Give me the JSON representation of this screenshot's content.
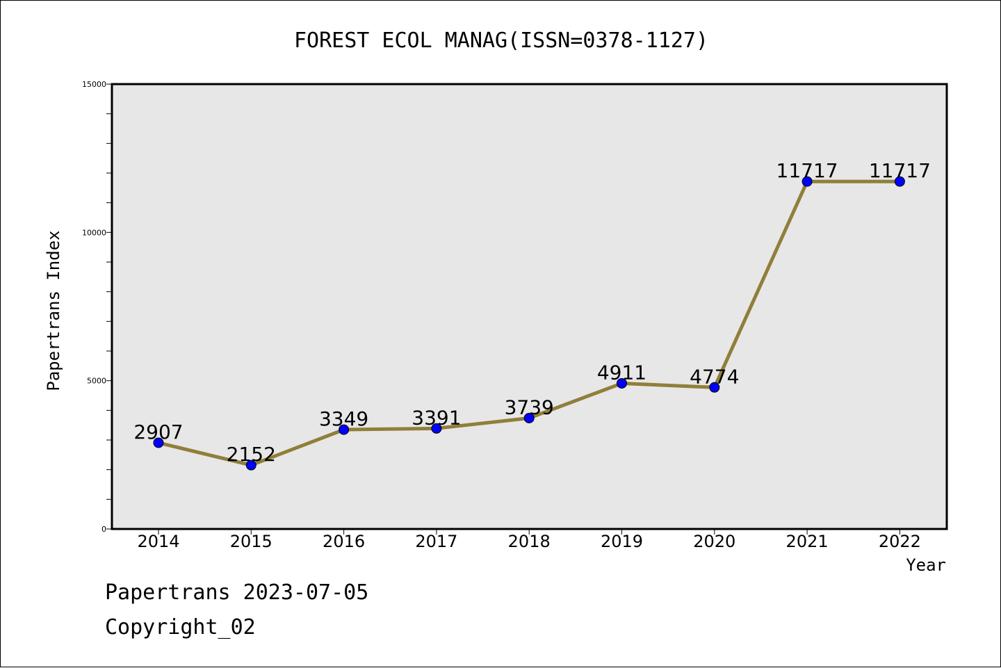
{
  "chart_data": {
    "type": "line",
    "title": "FOREST ECOL MANAG(ISSN=0378-1127)",
    "xlabel": "Year",
    "ylabel": "Papertrans Index",
    "categories": [
      "2014",
      "2015",
      "2016",
      "2017",
      "2018",
      "2019",
      "2020",
      "2021",
      "2022"
    ],
    "series": [
      {
        "values": [
          2907,
          2152,
          3349,
          3391,
          3739,
          4911,
          4774,
          11717,
          11717
        ],
        "data_labels": [
          "2907",
          "2152",
          "3349",
          "3391",
          "3739",
          "4911",
          "4774",
          "11717",
          "11717"
        ]
      }
    ],
    "ylim": [
      0,
      15000
    ],
    "y_major_ticks": [
      0,
      5000,
      10000,
      15000
    ],
    "y_tick_labels": [
      "0",
      "5000",
      "10000",
      "15000"
    ],
    "y_minor_step": 1000,
    "grid": false,
    "colors": {
      "line": "#8f7f3a",
      "marker": "#0000ff",
      "plot_background": "#e7e7e7"
    }
  },
  "footer": {
    "line1": "Papertrans 2023-07-05",
    "line2": "Copyright_02"
  }
}
